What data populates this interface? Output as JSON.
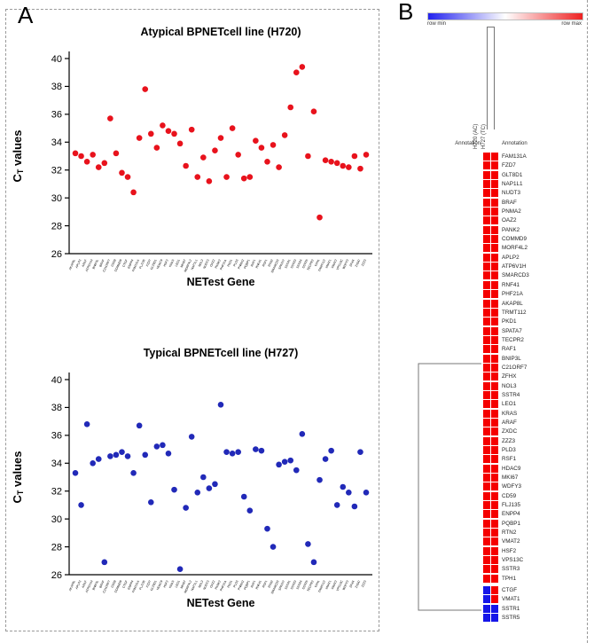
{
  "figure": {
    "panel_a": "A",
    "panel_b": "B"
  },
  "chart_data": [
    {
      "type": "scatter",
      "title": "Atypical BPNETcell line (H720)",
      "xlabel": "NETest Gene",
      "ylabel": "CT values",
      "ylabel_parts": [
        "C",
        "T",
        " values"
      ],
      "ylim": [
        26,
        40
      ],
      "yticks": [
        26,
        28,
        30,
        32,
        34,
        36,
        38,
        40
      ],
      "point_color": "#e8121c",
      "x": [
        "AKAP8L",
        "APLP2",
        "ARAF",
        "ATP6V1H",
        "BNIP3L",
        "BRAF",
        "C21ORF7",
        "CD59",
        "COMMD9",
        "CTGF",
        "ENPP4",
        "FAM131A",
        "FLJ135",
        "FZD7",
        "GLT8D1",
        "HDAC9",
        "HSF2",
        "KRAS",
        "LEO1",
        "MKI67",
        "MORF4L2",
        "NAP1L1",
        "NOL3",
        "NUDT3",
        "OAZ2",
        "PANK2",
        "PHF21A",
        "PKD1",
        "PLD3",
        "PNMA2",
        "PQBP1",
        "RAF1",
        "RNF41",
        "RSF1",
        "RTN2",
        "SMARCD3",
        "SPATA7",
        "SSTR1",
        "SSTR3",
        "SSTR4",
        "SSTR5",
        "TECPR2",
        "TPH1",
        "TRMT112",
        "VMAT1",
        "VMAT2",
        "VPS13C",
        "WDFY3",
        "ZFHX",
        "ZXDC",
        "ZZZ3"
      ],
      "y": [
        33.2,
        33.0,
        32.6,
        33.1,
        32.2,
        32.5,
        35.7,
        33.2,
        31.8,
        31.5,
        30.4,
        34.3,
        37.8,
        34.6,
        33.6,
        35.2,
        34.8,
        34.6,
        33.9,
        32.3,
        34.9,
        31.5,
        32.9,
        31.2,
        33.4,
        34.3,
        31.5,
        35.0,
        33.1,
        31.4,
        31.5,
        34.1,
        33.6,
        32.6,
        33.8,
        32.2,
        34.5,
        36.5,
        39.0,
        39.4,
        33.0,
        36.2,
        28.6,
        32.7,
        32.6,
        32.5,
        32.3,
        32.2,
        33.0,
        32.1,
        33.1
      ]
    },
    {
      "type": "scatter",
      "title": "Typical BPNETcell line (H727)",
      "xlabel": "NETest Gene",
      "ylabel": "CT values",
      "ylabel_parts": [
        "C",
        "T",
        " values"
      ],
      "ylim": [
        26,
        40
      ],
      "yticks": [
        26,
        28,
        30,
        32,
        34,
        36,
        38,
        40
      ],
      "point_color": "#2129b8",
      "x": [
        "AKAP8L",
        "APLP2",
        "ARAF",
        "ATP6V1H",
        "BNIP3L",
        "BRAF",
        "C21ORF7",
        "CD59",
        "COMMD9",
        "CTGF",
        "ENPP4",
        "FAM131A",
        "FLJ135",
        "FZD7",
        "GLT8D1",
        "HDAC9",
        "HSF2",
        "KRAS",
        "LEO1",
        "MKI67",
        "MORF4L2",
        "NAP1L1",
        "NOL3",
        "NUDT3",
        "OAZ2",
        "PANK2",
        "PHF21A",
        "PKD1",
        "PLD3",
        "PNMA2",
        "PQBP1",
        "RAF1",
        "RNF41",
        "RSF1",
        "RTN2",
        "SMARCD3",
        "SPATA7",
        "SSTR1",
        "SSTR3",
        "SSTR4",
        "SSTR5",
        "TECPR2",
        "TPH1",
        "TRMT112",
        "VMAT1",
        "VMAT2",
        "VPS13C",
        "WDFY3",
        "ZFHX",
        "ZXDC",
        "ZZZ3"
      ],
      "y": [
        33.3,
        31.0,
        36.8,
        34.0,
        34.3,
        26.9,
        34.5,
        34.6,
        34.8,
        34.5,
        33.3,
        36.7,
        34.6,
        31.2,
        35.2,
        35.3,
        34.7,
        32.1,
        26.4,
        30.8,
        35.9,
        31.9,
        33.0,
        32.2,
        32.5,
        38.2,
        34.8,
        34.7,
        34.8,
        31.6,
        30.6,
        35.0,
        34.9,
        29.3,
        28.0,
        33.9,
        34.1,
        34.2,
        33.5,
        36.1,
        28.2,
        26.9,
        32.8,
        34.3,
        34.9,
        31.0,
        32.3,
        31.9,
        30.9,
        34.8,
        31.9
      ]
    },
    {
      "type": "heatmap",
      "legend": {
        "min_label": "row min",
        "max_label": "row max"
      },
      "columns": [
        "H720 (AC)",
        "H727 (TC)"
      ],
      "annotation_left": "Annotation",
      "annotation_right": "Annotation",
      "palette": {
        "max": "#f50000",
        "min": "#1616e8"
      },
      "gap_before_row": 47,
      "rows": [
        "FAM131A",
        "FZD7",
        "GLT8D1",
        "NAP1L1",
        "NUDT3",
        "BRAF",
        "PNMA2",
        "OAZ2",
        "PANK2",
        "COMMD9",
        "MORF4L2",
        "APLP2",
        "ATP6V1H",
        "SMARCD3",
        "RNF41",
        "PHF21A",
        "AKAP8L",
        "TRMT112",
        "PKD1",
        "SPATA7",
        "TECPR2",
        "RAF1",
        "BNIP3L",
        "C21ORF7",
        "ZFHX",
        "NOL3",
        "SSTR4",
        "LEO1",
        "KRAS",
        "ARAF",
        "ZXDC",
        "ZZZ3",
        "PLD3",
        "RSF1",
        "HDAC9",
        "MKI67",
        "WDFY3",
        "CD59",
        "FLJ135",
        "ENPP4",
        "PQBP1",
        "RTN2",
        "VMAT2",
        "HSF2",
        "VPS13C",
        "SSTR3",
        "TPH1",
        "CTGF",
        "VMAT1",
        "SSTR1",
        "SSTR5"
      ],
      "values": [
        [
          1,
          1
        ],
        [
          1,
          1
        ],
        [
          1,
          1
        ],
        [
          1,
          1
        ],
        [
          1,
          1
        ],
        [
          1,
          1
        ],
        [
          1,
          1
        ],
        [
          1,
          1
        ],
        [
          1,
          1
        ],
        [
          1,
          1
        ],
        [
          1,
          1
        ],
        [
          1,
          1
        ],
        [
          1,
          1
        ],
        [
          1,
          1
        ],
        [
          1,
          1
        ],
        [
          1,
          1
        ],
        [
          1,
          1
        ],
        [
          1,
          1
        ],
        [
          1,
          1
        ],
        [
          1,
          1
        ],
        [
          1,
          1
        ],
        [
          1,
          1
        ],
        [
          1,
          1
        ],
        [
          1,
          1
        ],
        [
          1,
          1
        ],
        [
          1,
          1
        ],
        [
          1,
          1
        ],
        [
          1,
          1
        ],
        [
          1,
          1
        ],
        [
          1,
          1
        ],
        [
          1,
          1
        ],
        [
          1,
          1
        ],
        [
          1,
          1
        ],
        [
          1,
          1
        ],
        [
          1,
          1
        ],
        [
          1,
          1
        ],
        [
          1,
          1
        ],
        [
          1,
          1
        ],
        [
          1,
          1
        ],
        [
          1,
          1
        ],
        [
          1,
          1
        ],
        [
          1,
          1
        ],
        [
          1,
          1
        ],
        [
          1,
          1
        ],
        [
          1,
          1
        ],
        [
          1,
          1
        ],
        [
          1,
          1
        ],
        [
          0,
          1
        ],
        [
          0,
          1
        ],
        [
          0,
          0
        ],
        [
          0,
          0
        ]
      ]
    }
  ]
}
